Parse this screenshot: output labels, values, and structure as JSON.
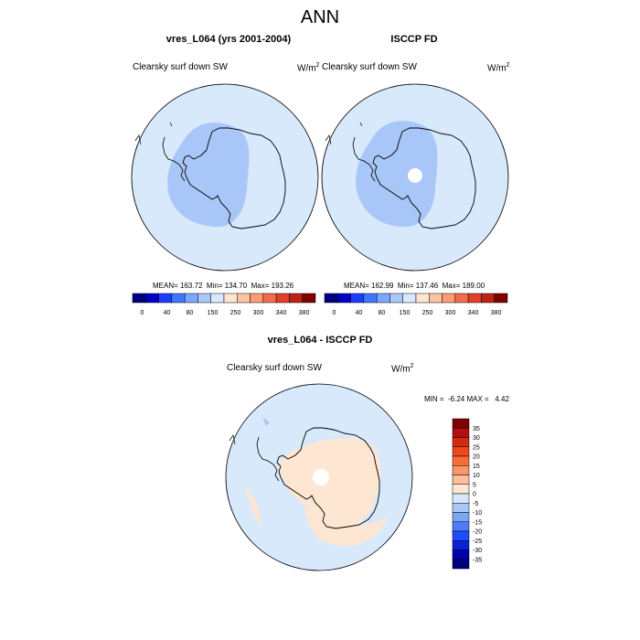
{
  "page": {
    "title": "ANN"
  },
  "panels": [
    {
      "title": "vres_L064 (yrs 2001-2004)",
      "variable": "Clearsky surf down SW",
      "unit_base": "W/m",
      "unit_exp": "2",
      "stats": "MEAN= 163.72  Min= 134.70  Max= 193.26"
    },
    {
      "title": "ISCCP FD",
      "variable": "Clearsky surf down SW",
      "unit_base": "W/m",
      "unit_exp": "2",
      "stats": "MEAN= 162.99  Min= 137.46  Max= 189.00"
    },
    {
      "title": "vres_L064 - ISCCP FD",
      "variable": "Clearsky surf down SW",
      "unit_base": "W/m",
      "unit_exp": "2",
      "stats": "MIN =  -6.24 MAX =   4.42"
    }
  ],
  "colors": {
    "ocean_fill": "#d8e9fc",
    "interior_band": "#a8c6f7",
    "diff_positive_patch": "#fde6d2",
    "coast": "#000000"
  },
  "chart_data": [
    {
      "type": "heatmap",
      "projection": "polar stereographic (south)",
      "title": "vres_L064 (yrs 2001-2004)",
      "field": "Clearsky surf down SW",
      "units": "W/m2",
      "mean": 163.72,
      "min": 134.7,
      "max": 193.26,
      "colorbar": {
        "orientation": "horizontal",
        "levels": [
          0,
          40,
          80,
          150,
          250,
          300,
          340,
          380
        ],
        "colors": [
          "#00007f",
          "#0000c8",
          "#1e3cff",
          "#3c78ff",
          "#78a8ff",
          "#a8c8f8",
          "#d8e8fc",
          "#fde6d2",
          "#fdc4a2",
          "#fc9c76",
          "#f46a4a",
          "#e0402a",
          "#bc2216",
          "#7f0000"
        ]
      }
    },
    {
      "type": "heatmap",
      "projection": "polar stereographic (south)",
      "title": "ISCCP FD",
      "field": "Clearsky surf down SW",
      "units": "W/m2",
      "mean": 162.99,
      "min": 137.46,
      "max": 189.0,
      "colorbar": {
        "orientation": "horizontal",
        "levels": [
          0,
          40,
          80,
          150,
          250,
          300,
          340,
          380
        ],
        "colors": [
          "#00007f",
          "#0000c8",
          "#1e3cff",
          "#3c78ff",
          "#78a8ff",
          "#a8c8f8",
          "#d8e8fc",
          "#fde6d2",
          "#fdc4a2",
          "#fc9c76",
          "#f46a4a",
          "#e0402a",
          "#bc2216",
          "#7f0000"
        ]
      }
    },
    {
      "type": "heatmap",
      "projection": "polar stereographic (south)",
      "title": "vres_L064 - ISCCP FD",
      "field": "Clearsky surf down SW",
      "units": "W/m2",
      "min": -6.24,
      "max": 4.42,
      "colorbar": {
        "orientation": "vertical",
        "levels": [
          35,
          30,
          25,
          20,
          15,
          10,
          5,
          0,
          -5,
          -10,
          -15,
          -20,
          -25,
          -30,
          -35
        ],
        "colors": [
          "#7f0000",
          "#b01010",
          "#d42a10",
          "#ec4a1e",
          "#f86c3a",
          "#fc9668",
          "#fdbf9c",
          "#fde6d2",
          "#d8e8fc",
          "#a8c8f8",
          "#7aa6f8",
          "#4c7cf6",
          "#1e4cff",
          "#0a22d8",
          "#0000b0",
          "#00007f"
        ]
      }
    }
  ]
}
